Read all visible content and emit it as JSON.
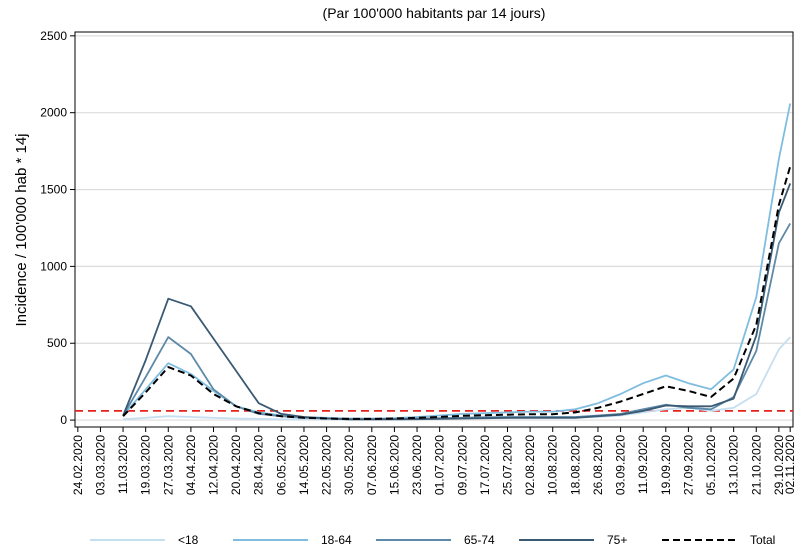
{
  "chart_data": {
    "type": "line",
    "title": "(Par 100'000 habitants par 14 jours)",
    "y_label": "Incidence / 100'000 hab * 14j",
    "x": [
      "24.02.2020",
      "03.03.2020",
      "11.03.2020",
      "19.03.2020",
      "27.03.2020",
      "04.04.2020",
      "12.04.2020",
      "20.04.2020",
      "28.04.2020",
      "06.05.2020",
      "14.05.2020",
      "22.05.2020",
      "30.05.2020",
      "07.06.2020",
      "15.06.2020",
      "23.06.2020",
      "01.07.2020",
      "09.07.2020",
      "17.07.2020",
      "25.07.2020",
      "02.08.2020",
      "10.08.2020",
      "18.08.2020",
      "26.08.2020",
      "03.09.2020",
      "11.09.2020",
      "19.09.2020",
      "27.09.2020",
      "05.10.2020",
      "13.10.2020",
      "21.10.2020",
      "29.10.2020",
      "02.11.2020"
    ],
    "xticks": [
      "24.02.2020",
      "03.03.2020",
      "11.03.2020",
      "19.03.2020",
      "27.03.2020",
      "04.04.2020",
      "12.04.2020",
      "20.04.2020",
      "28.04.2020",
      "06.05.2020",
      "14.05.2020",
      "22.05.2020",
      "30.05.2020",
      "07.06.2020",
      "15.06.2020",
      "23.06.2020",
      "01.07.2020",
      "09.07.2020",
      "17.07.2020",
      "25.07.2020",
      "02.08.2020",
      "10.08.2020",
      "18.08.2020",
      "26.08.2020",
      "03.09.2020",
      "11.09.2020",
      "19.09.2020",
      "27.09.2020",
      "05.10.2020",
      "13.10.2020",
      "21.10.2020",
      "29.10.2020",
      "02.11.2020"
    ],
    "xlim": [
      "23.02.2020",
      "03.11.2020"
    ],
    "ylim": [
      -45,
      2525
    ],
    "yticks": [
      0,
      500,
      1000,
      1500,
      2000,
      2500
    ],
    "grid": true,
    "reference_line": 60,
    "reference_color": "#e8201c",
    "series": [
      {
        "name": "<18",
        "color": "#c5dff0",
        "style": "solid",
        "values": [
          null,
          null,
          5,
          15,
          25,
          20,
          15,
          10,
          8,
          5,
          5,
          5,
          5,
          5,
          6,
          8,
          10,
          12,
          14,
          15,
          16,
          16,
          18,
          20,
          30,
          50,
          70,
          80,
          60,
          80,
          170,
          460,
          540
        ]
      },
      {
        "name": "18-64",
        "color": "#7fbde0",
        "style": "solid",
        "values": [
          null,
          null,
          30,
          200,
          370,
          300,
          190,
          90,
          50,
          30,
          20,
          15,
          10,
          10,
          12,
          20,
          30,
          40,
          45,
          50,
          55,
          55,
          70,
          110,
          170,
          240,
          290,
          240,
          200,
          330,
          800,
          1700,
          2060
        ]
      },
      {
        "name": "65-74",
        "color": "#5d8aa8",
        "style": "solid",
        "values": [
          null,
          null,
          30,
          280,
          540,
          430,
          200,
          90,
          40,
          25,
          15,
          10,
          5,
          5,
          8,
          10,
          12,
          15,
          18,
          20,
          20,
          20,
          20,
          30,
          40,
          70,
          100,
          80,
          70,
          150,
          450,
          1150,
          1280
        ]
      },
      {
        "name": "75+",
        "color": "#3a5a74",
        "style": "solid",
        "values": [
          null,
          null,
          30,
          390,
          790,
          740,
          530,
          320,
          110,
          40,
          20,
          10,
          5,
          5,
          5,
          6,
          8,
          10,
          12,
          14,
          15,
          15,
          15,
          25,
          35,
          60,
          95,
          90,
          90,
          140,
          550,
          1350,
          1540
        ]
      },
      {
        "name": "Total",
        "color": "#000000",
        "style": "dashed",
        "values": [
          null,
          null,
          25,
          180,
          345,
          290,
          170,
          90,
          45,
          25,
          15,
          10,
          8,
          8,
          10,
          15,
          20,
          28,
          32,
          35,
          38,
          38,
          50,
          80,
          120,
          170,
          220,
          190,
          150,
          270,
          620,
          1400,
          1650
        ]
      }
    ]
  }
}
